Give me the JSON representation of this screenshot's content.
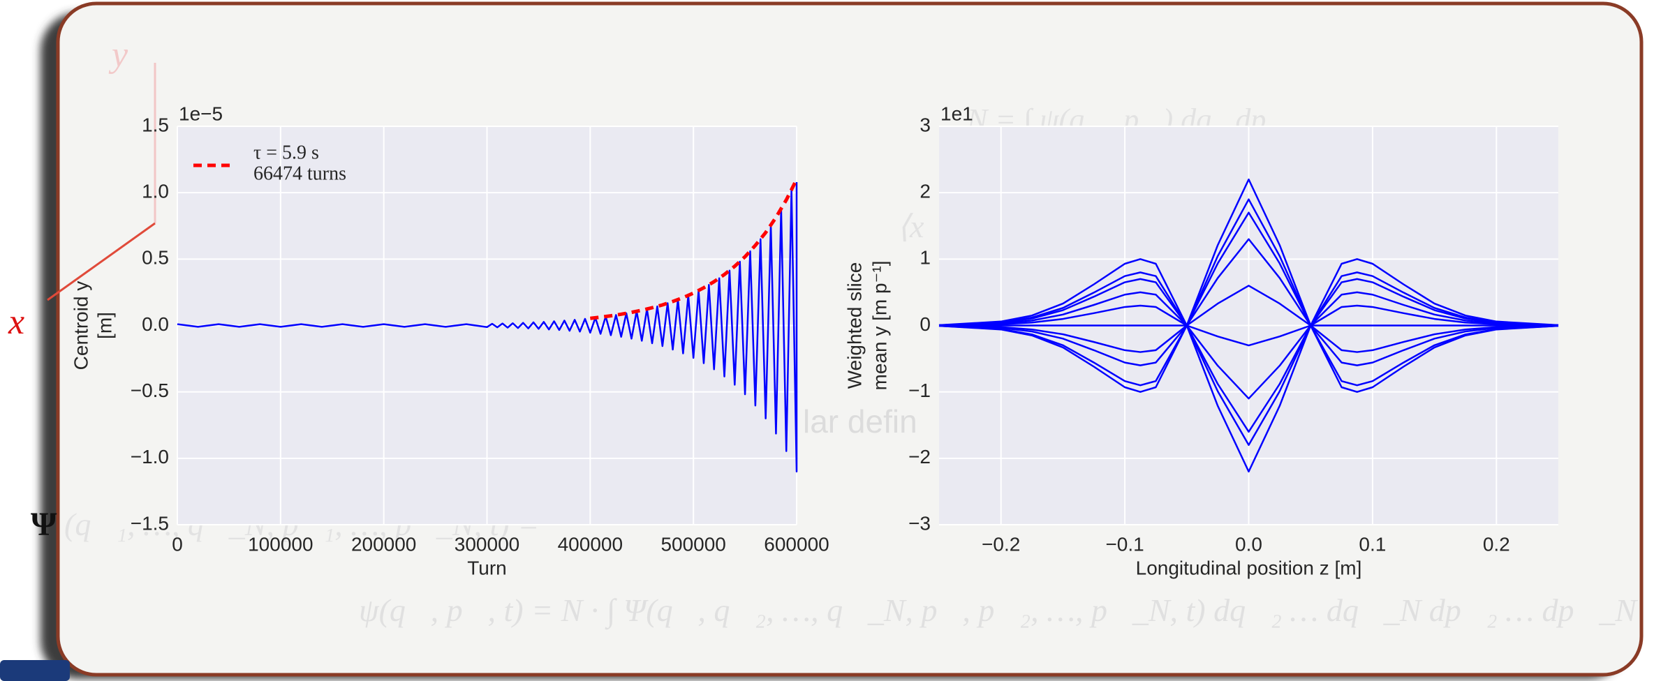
{
  "slide": {
    "background_text": [
      "y",
      "x",
      "Ψ",
      "(q⃗₁, …, q⃗_N, p⃗₁, …, p⃗_N, t) =",
      "lar defin",
      "N = ∫ ψ(q⃗, p⃗) dq⃗dp⃗",
      "⟨x",
      "ψ(q⃗, p⃗, t) = N · ∫ Ψ(q⃗, q⃗₂, …, q⃗_N, p⃗, p⃗₂, …, p⃗_N, t) dq⃗₂ … dq⃗_N dp⃗₂ … dp⃗_N"
    ]
  },
  "chart_data": [
    {
      "type": "line",
      "xlabel": "Turn",
      "ylabel": [
        "Centroid y",
        "[m]"
      ],
      "offset_label": "1e−5",
      "legend_text": [
        "τ = 5.9 s",
        "66474 turns"
      ],
      "grid": true,
      "background": "#eaeaf2",
      "xlim": [
        0,
        600000
      ],
      "xticks": [
        0,
        100000,
        200000,
        300000,
        400000,
        500000,
        600000
      ],
      "ylim": [
        -1.5,
        1.5
      ],
      "yticks": [
        {
          "value": -1.5,
          "label": "−1.5"
        },
        {
          "value": -1,
          "label": "−1.0"
        },
        {
          "value": -0.5,
          "label": "−0.5"
        },
        {
          "value": 0,
          "label": "0.0"
        },
        0.5,
        {
          "value": 1,
          "label": "1.0"
        },
        1.5
      ],
      "series": [
        {
          "color": "#0000ff",
          "linestyle": "solid",
          "x": [
            0,
            20000,
            40000,
            60000,
            80000,
            100000,
            120000,
            140000,
            160000,
            180000,
            200000,
            220000,
            240000,
            260000,
            280000,
            300000,
            305000,
            310000,
            315000,
            320000,
            325000,
            330000,
            335000,
            340000,
            345000,
            350000,
            355000,
            360000,
            365000,
            370000,
            375000,
            380000,
            385000,
            390000,
            395000,
            400000,
            405000,
            410000,
            415000,
            420000,
            425000,
            430000,
            435000,
            440000,
            445000,
            450000,
            455000,
            460000,
            465000,
            470000,
            475000,
            480000,
            485000,
            490000,
            495000,
            500000,
            505000,
            510000,
            515000,
            520000,
            525000,
            530000,
            535000,
            540000,
            545000,
            550000,
            555000,
            560000,
            565000,
            570000,
            575000,
            580000,
            585000,
            590000,
            595000,
            600000,
            600000
          ],
          "values": [
            0.01,
            -0.01,
            0.01,
            -0.01,
            0.01,
            -0.01,
            0.01,
            -0.01,
            0.01,
            -0.01,
            0.01,
            -0.01,
            0.01,
            -0.01,
            0.01,
            -0.012,
            0.013,
            -0.014,
            0.015,
            -0.016,
            0.017,
            -0.019,
            0.02,
            -0.022,
            0.024,
            -0.025,
            0.027,
            -0.03,
            0.032,
            -0.034,
            0.037,
            -0.04,
            0.043,
            -0.046,
            0.05,
            -0.054,
            0.058,
            -0.063,
            0.068,
            -0.073,
            0.079,
            -0.085,
            0.092,
            -0.099,
            0.107,
            -0.115,
            0.124,
            -0.134,
            0.144,
            -0.155,
            0.168,
            -0.181,
            0.195,
            -0.21,
            0.227,
            -0.244,
            0.263,
            -0.284,
            0.306,
            -0.33,
            0.356,
            -0.384,
            0.414,
            -0.446,
            0.481,
            -0.518,
            0.559,
            -0.603,
            0.65,
            -0.7,
            0.755,
            -0.814,
            0.878,
            -0.946,
            1.02,
            -1.1,
            1.08
          ]
        },
        {
          "color": "#ff0000",
          "linestyle": "dashed",
          "x": [
            400000,
            410000,
            420000,
            430000,
            440000,
            450000,
            460000,
            470000,
            480000,
            490000,
            500000,
            510000,
            520000,
            530000,
            540000,
            550000,
            560000,
            570000,
            580000,
            590000,
            600000
          ],
          "values": [
            0.054,
            0.063,
            0.073,
            0.085,
            0.099,
            0.115,
            0.134,
            0.155,
            0.181,
            0.21,
            0.244,
            0.284,
            0.33,
            0.384,
            0.446,
            0.518,
            0.603,
            0.7,
            0.814,
            0.946,
            1.1
          ]
        }
      ]
    },
    {
      "type": "line",
      "xlabel": "Longitudinal position z [m]",
      "ylabel": [
        "Weighted slice",
        "mean y [m p⁻¹]"
      ],
      "offset_label": "1e1",
      "grid": true,
      "background": "#eaeaf2",
      "xlim": [
        -0.25,
        0.25
      ],
      "xticks": [
        {
          "value": -0.2,
          "label": "−0.2"
        },
        {
          "value": -0.1,
          "label": "−0.1"
        },
        {
          "value": 0,
          "label": "0.0"
        },
        0.1,
        0.2
      ],
      "ylim": [
        -3,
        3
      ],
      "yticks": [
        {
          "value": -3,
          "label": "−3"
        },
        {
          "value": -2,
          "label": "−2"
        },
        {
          "value": -1,
          "label": "−1"
        },
        0,
        1,
        2,
        3
      ],
      "series": [
        {
          "color": "#0000ff",
          "linestyle": "solid",
          "x": [
            -0.25,
            -0.2,
            -0.175,
            -0.15,
            -0.125,
            -0.1,
            -0.0875,
            -0.075,
            -0.05,
            -0.025,
            0,
            0.025,
            0.05,
            0.075,
            0.0875,
            0.1,
            0.125,
            0.15,
            0.175,
            0.2,
            0.25
          ],
          "values": [
            -0.005,
            -0.06,
            -0.15,
            -0.33,
            -0.62,
            -0.93,
            -1,
            -0.93,
            0,
            1.21,
            2.2,
            1.21,
            0,
            -0.93,
            -1,
            -0.93,
            -0.62,
            -0.33,
            -0.15,
            -0.06,
            -0.005
          ]
        },
        {
          "color": "#0000ff",
          "linestyle": "solid",
          "x": [
            -0.25,
            -0.2,
            -0.175,
            -0.15,
            -0.125,
            -0.1,
            -0.0875,
            -0.075,
            -0.05,
            -0.025,
            0,
            0.025,
            0.05,
            0.075,
            0.0875,
            0.1,
            0.125,
            0.15,
            0.175,
            0.2,
            0.25
          ],
          "values": [
            -0.003,
            -0.036,
            -0.09,
            -0.198,
            -0.372,
            -0.558,
            -0.6,
            -0.558,
            0,
            1.045,
            1.9,
            1.045,
            0,
            -0.558,
            -0.6,
            -0.558,
            -0.372,
            -0.198,
            -0.09,
            -0.036,
            -0.003
          ]
        },
        {
          "color": "#0000ff",
          "linestyle": "solid",
          "x": [
            -0.25,
            -0.2,
            -0.175,
            -0.15,
            -0.125,
            -0.1,
            -0.0875,
            -0.075,
            -0.05,
            -0.025,
            0,
            0.025,
            0.05,
            0.075,
            0.0875,
            0.1,
            0.125,
            0.15,
            0.175,
            0.2,
            0.25
          ],
          "values": [
            0,
            0,
            0,
            0,
            0,
            0,
            0,
            0,
            0,
            0.715,
            1.3,
            0.715,
            0,
            0,
            0,
            0,
            0,
            0,
            0,
            0,
            0
          ]
        },
        {
          "color": "#0000ff",
          "linestyle": "solid",
          "x": [
            -0.25,
            -0.2,
            -0.175,
            -0.15,
            -0.125,
            -0.1,
            -0.0875,
            -0.075,
            -0.05,
            -0.025,
            0,
            0.025,
            0.05,
            0.075,
            0.0875,
            0.1,
            0.125,
            0.15,
            0.175,
            0.2,
            0.25
          ],
          "values": [
            0.004,
            0.042,
            0.105,
            0.231,
            0.434,
            0.651,
            0.7,
            0.651,
            0,
            0.33,
            0.6,
            0.33,
            0,
            0.651,
            0.7,
            0.651,
            0.434,
            0.231,
            0.105,
            0.042,
            0.004
          ]
        },
        {
          "color": "#0000ff",
          "linestyle": "solid",
          "x": [
            -0.25,
            -0.2,
            -0.175,
            -0.15,
            -0.125,
            -0.1,
            -0.0875,
            -0.075,
            -0.05,
            -0.025,
            0,
            0.025,
            0.05,
            0.075,
            0.0875,
            0.1,
            0.125,
            0.15,
            0.175,
            0.2,
            0.25
          ],
          "values": [
            0.005,
            0.06,
            0.15,
            0.33,
            0.62,
            0.93,
            1,
            0.93,
            0,
            -0.165,
            -0.3,
            -0.165,
            0,
            0.93,
            1,
            0.93,
            0.62,
            0.33,
            0.15,
            0.06,
            0.005
          ]
        },
        {
          "color": "#0000ff",
          "linestyle": "solid",
          "x": [
            -0.25,
            -0.2,
            -0.175,
            -0.15,
            -0.125,
            -0.1,
            -0.0875,
            -0.075,
            -0.05,
            -0.025,
            0,
            0.025,
            0.05,
            0.075,
            0.0875,
            0.1,
            0.125,
            0.15,
            0.175,
            0.2,
            0.25
          ],
          "values": [
            0.004,
            0.048,
            0.12,
            0.264,
            0.496,
            0.744,
            0.8,
            0.744,
            0,
            -0.605,
            -1.1,
            -0.605,
            0,
            0.744,
            0.8,
            0.744,
            0.496,
            0.264,
            0.12,
            0.048,
            0.004
          ]
        },
        {
          "color": "#0000ff",
          "linestyle": "solid",
          "x": [
            -0.25,
            -0.2,
            -0.175,
            -0.15,
            -0.125,
            -0.1,
            -0.0875,
            -0.075,
            -0.05,
            -0.025,
            0,
            0.025,
            0.05,
            0.075,
            0.0875,
            0.1,
            0.125,
            0.15,
            0.175,
            0.2,
            0.25
          ],
          "values": [
            0.002,
            0.018,
            0.045,
            0.099,
            0.186,
            0.279,
            0.3,
            0.279,
            0,
            -0.99,
            -1.8,
            -0.99,
            0,
            0.279,
            0.3,
            0.279,
            0.186,
            0.099,
            0.045,
            0.018,
            0.002
          ]
        },
        {
          "color": "#0000ff",
          "linestyle": "solid",
          "x": [
            -0.25,
            -0.2,
            -0.175,
            -0.15,
            -0.125,
            -0.1,
            -0.0875,
            -0.075,
            -0.05,
            -0.025,
            0,
            0.025,
            0.05,
            0.075,
            0.0875,
            0.1,
            0.125,
            0.15,
            0.175,
            0.2,
            0.25
          ],
          "values": [
            -0.002,
            -0.024,
            -0.06,
            -0.132,
            -0.248,
            -0.372,
            -0.4,
            -0.372,
            0,
            -1.21,
            -2.2,
            -1.21,
            0,
            -0.372,
            -0.4,
            -0.372,
            -0.248,
            -0.132,
            -0.06,
            -0.024,
            -0.002
          ]
        },
        {
          "color": "#0000ff",
          "linestyle": "solid",
          "x": [
            -0.25,
            -0.2,
            -0.175,
            -0.15,
            -0.125,
            -0.1,
            -0.0875,
            -0.075,
            -0.05,
            -0.025,
            0,
            0.025,
            0.05,
            0.075,
            0.0875,
            0.1,
            0.125,
            0.15,
            0.175,
            0.2,
            0.25
          ],
          "values": [
            -0.005,
            -0.054,
            -0.135,
            -0.297,
            -0.558,
            -0.837,
            -0.9,
            -0.837,
            0,
            -0.88,
            -1.6,
            -0.88,
            0,
            -0.837,
            -0.9,
            -0.837,
            -0.558,
            -0.297,
            -0.135,
            -0.054,
            -0.005
          ]
        },
        {
          "color": "#0000ff",
          "linestyle": "solid",
          "x": [
            -0.25,
            -0.2,
            -0.175,
            -0.15,
            -0.125,
            -0.1,
            -0.0875,
            -0.075,
            -0.05,
            -0.025,
            0,
            0.025,
            0.05,
            0.075,
            0.0875,
            0.1,
            0.125,
            0.15,
            0.175,
            0.2,
            0.25
          ],
          "values": [
            0.003,
            0.03,
            0.075,
            0.165,
            0.31,
            0.465,
            0.5,
            0.465,
            0,
            0.935,
            1.7,
            0.935,
            0,
            0.465,
            0.5,
            0.465,
            0.31,
            0.165,
            0.075,
            0.03,
            0.003
          ]
        }
      ]
    }
  ]
}
